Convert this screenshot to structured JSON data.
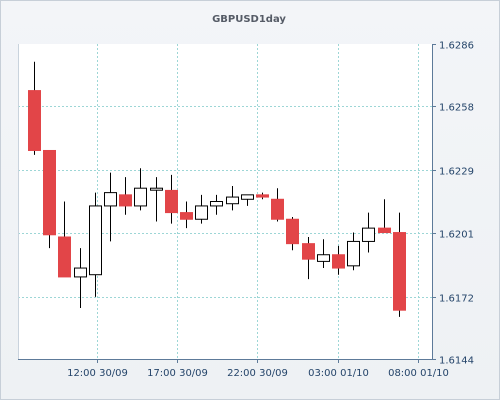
{
  "chart_data": {
    "type": "candlestick",
    "title": "GBPUSD1day",
    "y_ticks": [
      1.6144,
      1.6172,
      1.6201,
      1.6229,
      1.6258,
      1.6286
    ],
    "ylim": [
      1.6144,
      1.6286
    ],
    "x_tick_labels": [
      "12:00 30/09",
      "17:00 30/09",
      "22:00 30/09",
      "03:00 01/10",
      "08:00 01/10"
    ],
    "grid": true,
    "colors": {
      "bull_fill": "#ffffff",
      "bear_fill": "#e24548",
      "wick": "#000000",
      "grid": "#9dd6d6",
      "axis": "#5d7a99"
    },
    "candles": [
      {
        "open": 1.6265,
        "high": 1.6278,
        "low": 1.6236,
        "close": 1.6238
      },
      {
        "open": 1.6238,
        "high": 1.6238,
        "low": 1.6194,
        "close": 1.62
      },
      {
        "open": 1.6199,
        "high": 1.6215,
        "low": 1.6181,
        "close": 1.6181
      },
      {
        "open": 1.6181,
        "high": 1.6194,
        "low": 1.6167,
        "close": 1.6185
      },
      {
        "open": 1.6182,
        "high": 1.6219,
        "low": 1.6172,
        "close": 1.6213
      },
      {
        "open": 1.6213,
        "high": 1.6228,
        "low": 1.6197,
        "close": 1.6219
      },
      {
        "open": 1.6218,
        "high": 1.6226,
        "low": 1.6209,
        "close": 1.6213
      },
      {
        "open": 1.6213,
        "high": 1.623,
        "low": 1.6211,
        "close": 1.6221
      },
      {
        "open": 1.6221,
        "high": 1.6226,
        "low": 1.6206,
        "close": 1.6221
      },
      {
        "open": 1.622,
        "high": 1.6227,
        "low": 1.6205,
        "close": 1.621
      },
      {
        "open": 1.621,
        "high": 1.6215,
        "low": 1.6203,
        "close": 1.6207
      },
      {
        "open": 1.6207,
        "high": 1.6218,
        "low": 1.6205,
        "close": 1.6213
      },
      {
        "open": 1.6213,
        "high": 1.6218,
        "low": 1.6209,
        "close": 1.6215
      },
      {
        "open": 1.6214,
        "high": 1.6222,
        "low": 1.6211,
        "close": 1.6217
      },
      {
        "open": 1.6216,
        "high": 1.6218,
        "low": 1.6213,
        "close": 1.6218
      },
      {
        "open": 1.6218,
        "high": 1.6219,
        "low": 1.6216,
        "close": 1.6217
      },
      {
        "open": 1.6216,
        "high": 1.6221,
        "low": 1.6206,
        "close": 1.6207
      },
      {
        "open": 1.6207,
        "high": 1.6208,
        "low": 1.6193,
        "close": 1.6196
      },
      {
        "open": 1.6196,
        "high": 1.6199,
        "low": 1.618,
        "close": 1.6189
      },
      {
        "open": 1.6188,
        "high": 1.6198,
        "low": 1.6185,
        "close": 1.6191
      },
      {
        "open": 1.6191,
        "high": 1.6195,
        "low": 1.6182,
        "close": 1.6185
      },
      {
        "open": 1.6186,
        "high": 1.6201,
        "low": 1.6184,
        "close": 1.6197
      },
      {
        "open": 1.6197,
        "high": 1.621,
        "low": 1.6192,
        "close": 1.6203
      },
      {
        "open": 1.6203,
        "high": 1.6216,
        "low": 1.6201,
        "close": 1.6201
      },
      {
        "open": 1.6201,
        "high": 1.621,
        "low": 1.6163,
        "close": 1.6166
      }
    ]
  }
}
